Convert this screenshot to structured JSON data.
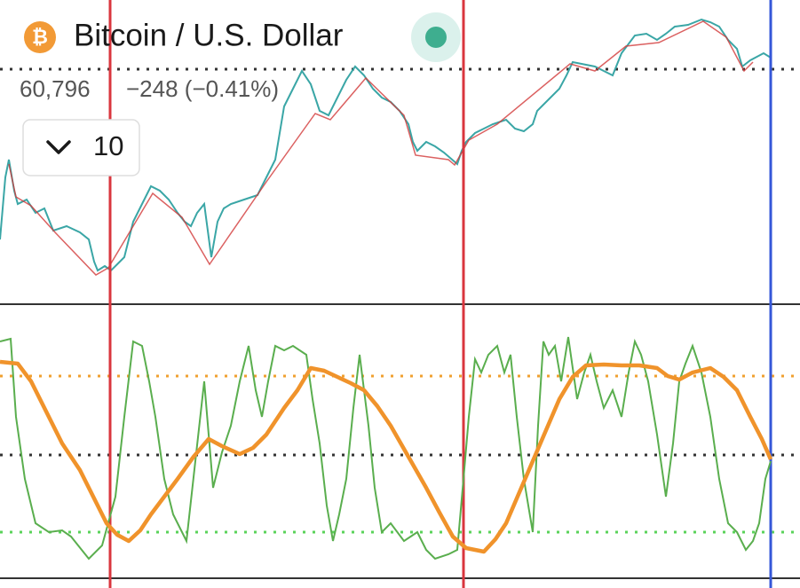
{
  "header": {
    "title": "Bitcoin / U.S. Dollar",
    "price": "60,796",
    "change": "−248 (−0.41%)"
  },
  "interval": {
    "value": "10"
  }
}
